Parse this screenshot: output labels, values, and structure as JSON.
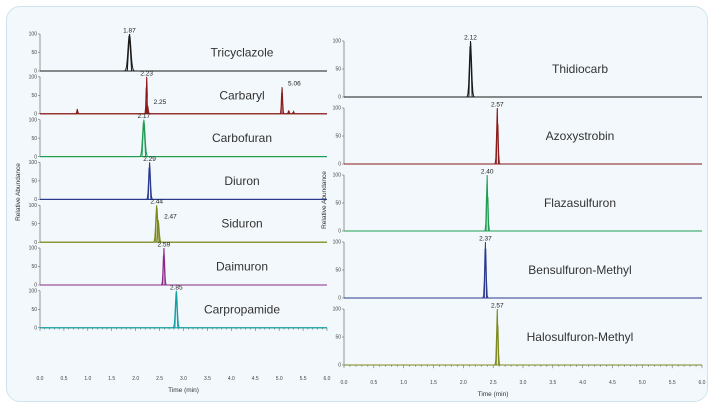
{
  "chart_data": [
    {
      "type": "line",
      "xlabel": "Time (min)",
      "ylabel": "Relative Abundance",
      "xlim": [
        0,
        6.0
      ],
      "ylim": [
        0,
        100
      ],
      "x_ticks": [
        "0.0",
        "0.5",
        "1.0",
        "1.5",
        "2.0",
        "2.5",
        "3.0",
        "3.5",
        "4.0",
        "4.5",
        "5.0",
        "5.5",
        "6.0"
      ],
      "y_ticks": [
        "0",
        "50",
        "100"
      ],
      "series": [
        {
          "name": "Tricyclazole",
          "color": "#1a1a1a",
          "peaks": [
            {
              "x": 1.87,
              "y": 100,
              "label": "1.87",
              "w": 0.03
            }
          ]
        },
        {
          "name": "Carbaryl",
          "color": "#8b1a1a",
          "peaks": [
            {
              "x": 2.23,
              "y": 100,
              "label": "2.23",
              "w": 0.012
            },
            {
              "x": 2.25,
              "y": 22,
              "label": "2.25",
              "w": 0.012
            },
            {
              "x": 5.06,
              "y": 72,
              "label": "5.06",
              "w": 0.012
            },
            {
              "x": 0.78,
              "y": 13,
              "label": "",
              "w": 0.01
            },
            {
              "x": 5.2,
              "y": 9,
              "label": "",
              "w": 0.01
            },
            {
              "x": 5.3,
              "y": 6,
              "label": "",
              "w": 0.01
            }
          ]
        },
        {
          "name": "Carbofuran",
          "color": "#1f9e52",
          "peaks": [
            {
              "x": 2.17,
              "y": 100,
              "label": "2.17",
              "w": 0.025
            }
          ]
        },
        {
          "name": "Diuron",
          "color": "#2b3a8f",
          "peaks": [
            {
              "x": 2.29,
              "y": 100,
              "label": "2.29",
              "w": 0.018
            }
          ]
        },
        {
          "name": "Siduron",
          "color": "#7d8a1e",
          "peaks": [
            {
              "x": 2.44,
              "y": 100,
              "label": "2.44",
              "w": 0.02
            },
            {
              "x": 2.47,
              "y": 60,
              "label": "2.47",
              "w": 0.02
            }
          ]
        },
        {
          "name": "Daimuron",
          "color": "#8b2a8b",
          "peaks": [
            {
              "x": 2.59,
              "y": 100,
              "label": "2.59",
              "w": 0.015
            }
          ]
        },
        {
          "name": "Carpropamide",
          "color": "#10a0a5",
          "peaks": [
            {
              "x": 2.85,
              "y": 100,
              "label": "2.85",
              "w": 0.02
            }
          ]
        }
      ]
    },
    {
      "type": "line",
      "xlabel": "Time (min)",
      "ylabel": "Relative Abundance",
      "xlim": [
        0,
        6.0
      ],
      "ylim": [
        0,
        100
      ],
      "x_ticks": [
        "0.0",
        "0.5",
        "1.0",
        "1.5",
        "2.0",
        "2.5",
        "3.0",
        "3.5",
        "4.0",
        "4.5",
        "5.0",
        "5.5",
        "6.0"
      ],
      "y_ticks": [
        "0",
        "50",
        "100"
      ],
      "series": [
        {
          "name": "Thidiocarb",
          "color": "#1a1a1a",
          "peaks": [
            {
              "x": 2.12,
              "y": 100,
              "label": "2.12",
              "w": 0.018
            }
          ]
        },
        {
          "name": "Azoxystrobin",
          "color": "#8b1a1a",
          "peaks": [
            {
              "x": 2.57,
              "y": 100,
              "label": "2.57",
              "w": 0.012
            }
          ]
        },
        {
          "name": "Flazasulfuron",
          "color": "#1f9e52",
          "peaks": [
            {
              "x": 2.4,
              "y": 100,
              "label": "2.40",
              "w": 0.012
            }
          ]
        },
        {
          "name": "Bensulfuron-Methyl",
          "color": "#2b3a8f",
          "peaks": [
            {
              "x": 2.37,
              "y": 100,
              "label": "2.37",
              "w": 0.012
            }
          ]
        },
        {
          "name": "Halosulfuron-Methyl",
          "color": "#7d8a1e",
          "peaks": [
            {
              "x": 2.57,
              "y": 100,
              "label": "2.57",
              "w": 0.012
            }
          ]
        }
      ]
    }
  ]
}
